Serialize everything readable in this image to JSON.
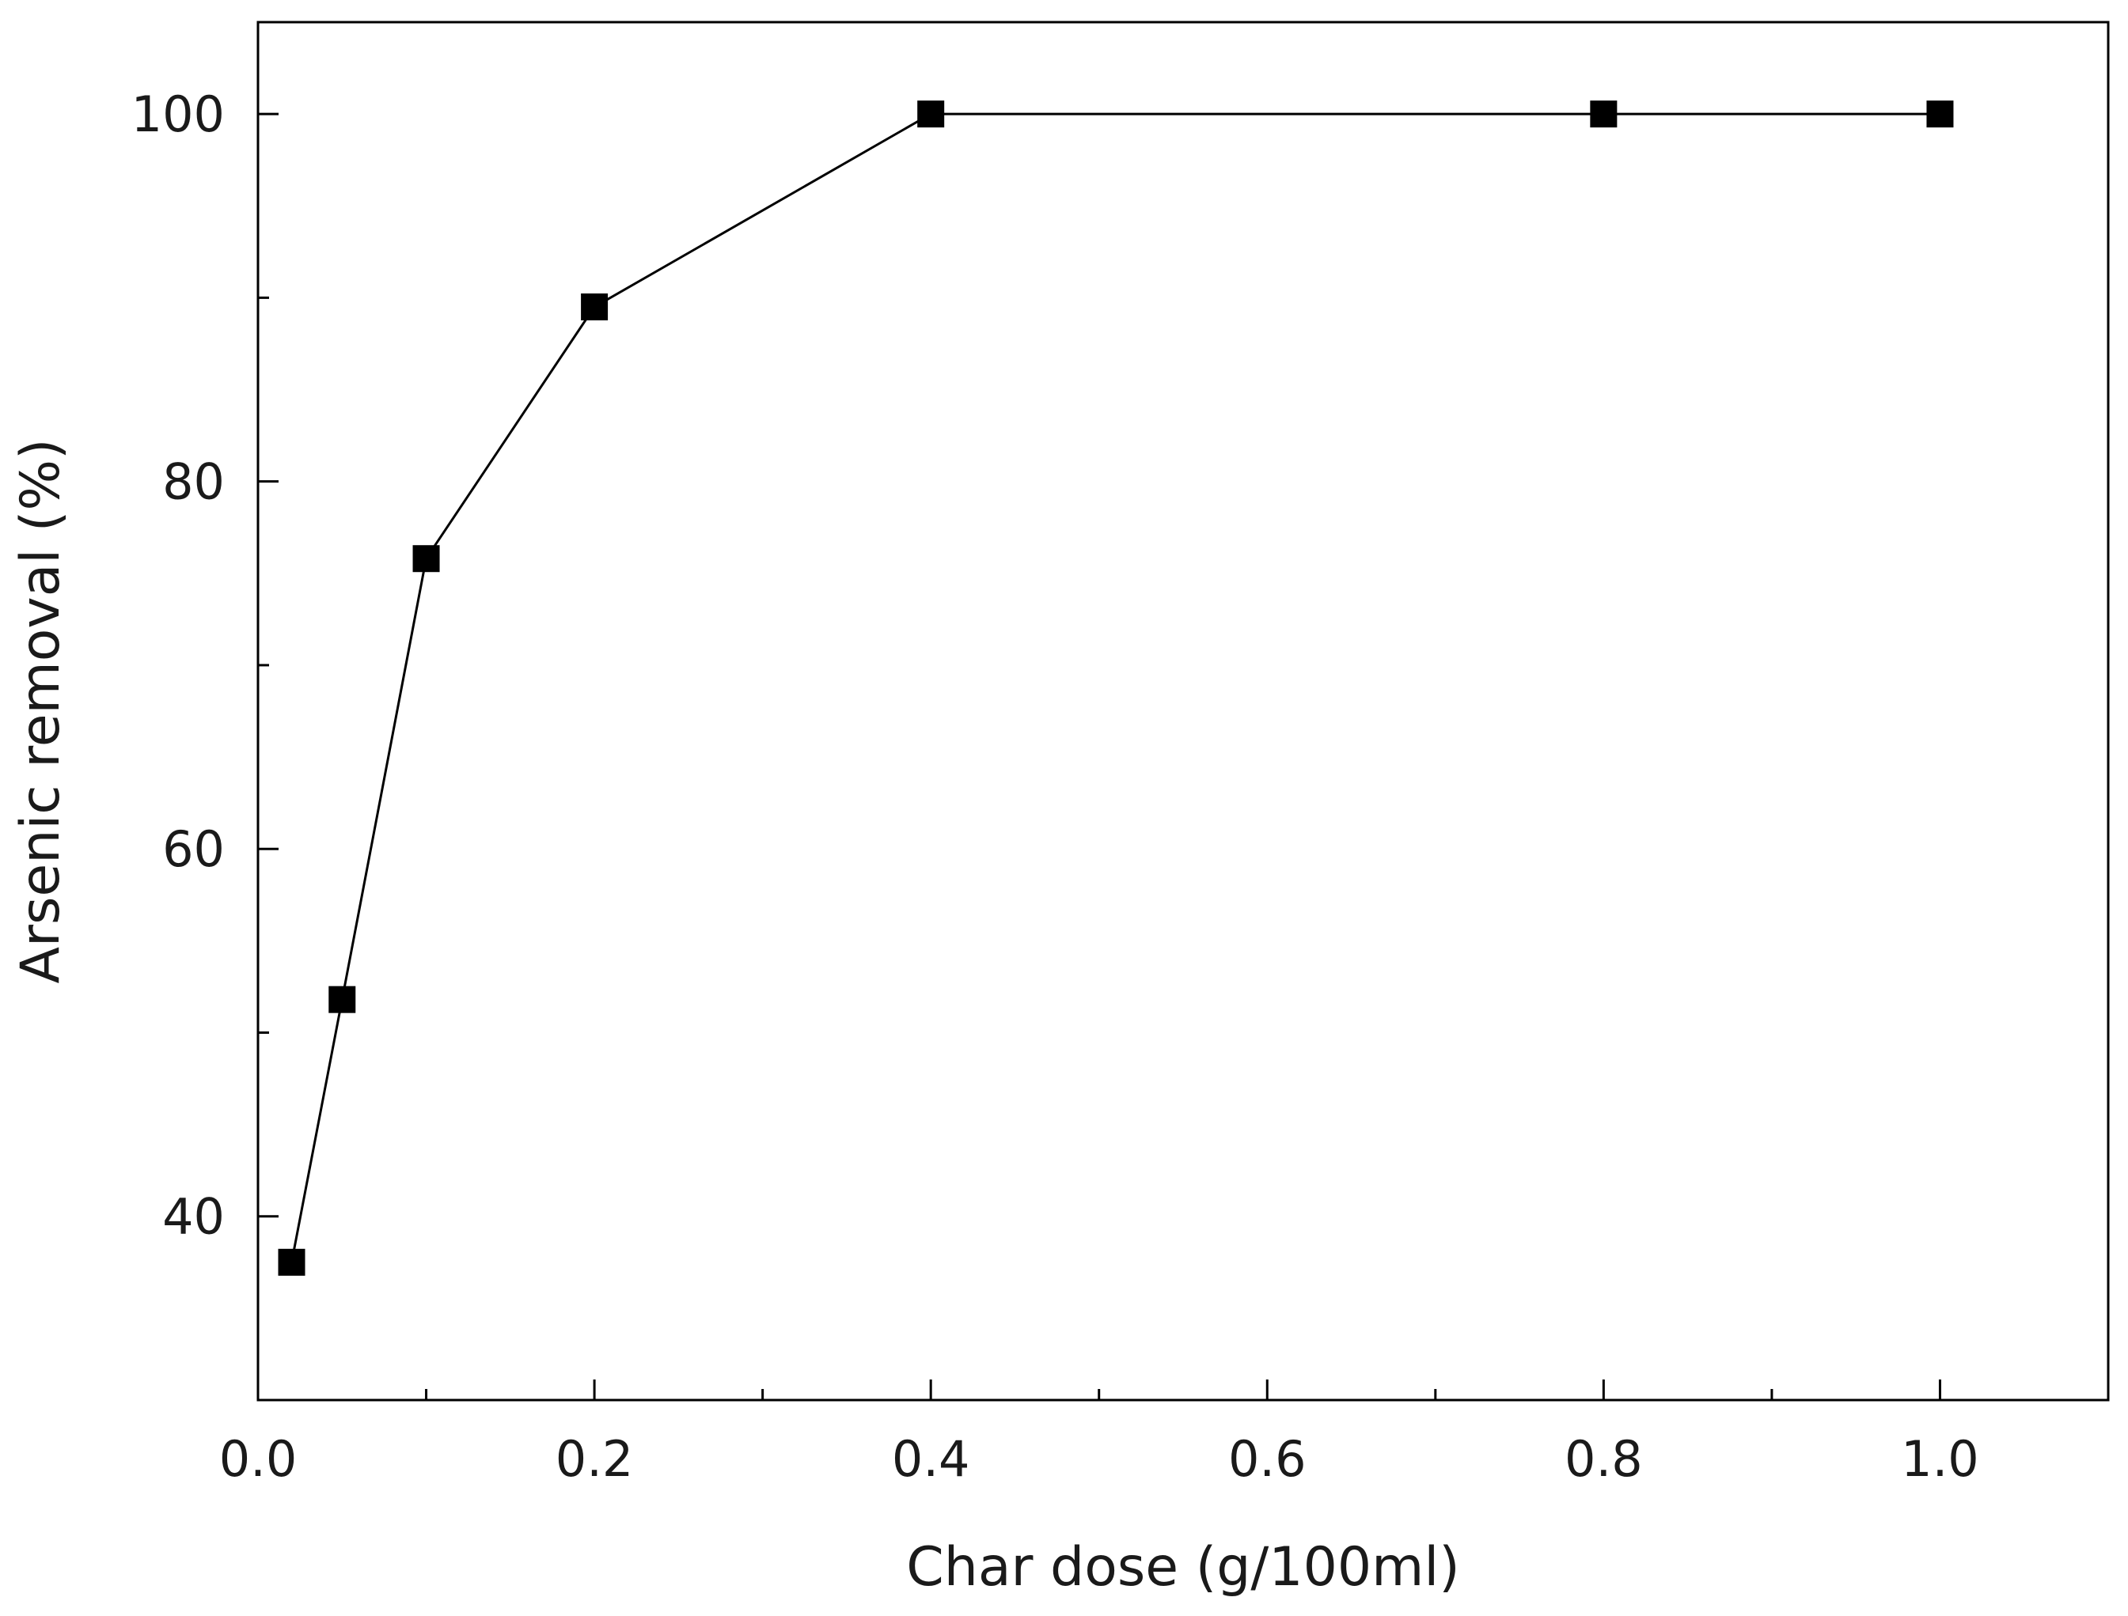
{
  "chart_data": {
    "type": "line",
    "title": "",
    "xlabel": "Char dose (g/100ml)",
    "ylabel": "Arsenic removal (%)",
    "xlim": [
      0.0,
      1.1
    ],
    "ylim": [
      30,
      105
    ],
    "x_ticks": [
      0.0,
      0.2,
      0.4,
      0.6,
      0.8,
      1.0
    ],
    "x_tick_labels": [
      "0.0",
      "0.2",
      "0.4",
      "0.6",
      "0.8",
      "1.0"
    ],
    "x_minor_ticks": [
      0.1,
      0.3,
      0.5,
      0.7,
      0.9
    ],
    "y_ticks": [
      40,
      60,
      80,
      100
    ],
    "y_tick_labels": [
      "40",
      "60",
      "80",
      "100"
    ],
    "y_minor_ticks": [
      50,
      70,
      90
    ],
    "grid": false,
    "legend": "none",
    "series": [
      {
        "x": [
          0.02,
          0.05,
          0.1,
          0.2,
          0.4,
          0.8,
          1.0
        ],
        "y": [
          37.5,
          51.8,
          75.8,
          89.5,
          100,
          100,
          100
        ],
        "marker": "square",
        "color": "#000000"
      }
    ]
  }
}
